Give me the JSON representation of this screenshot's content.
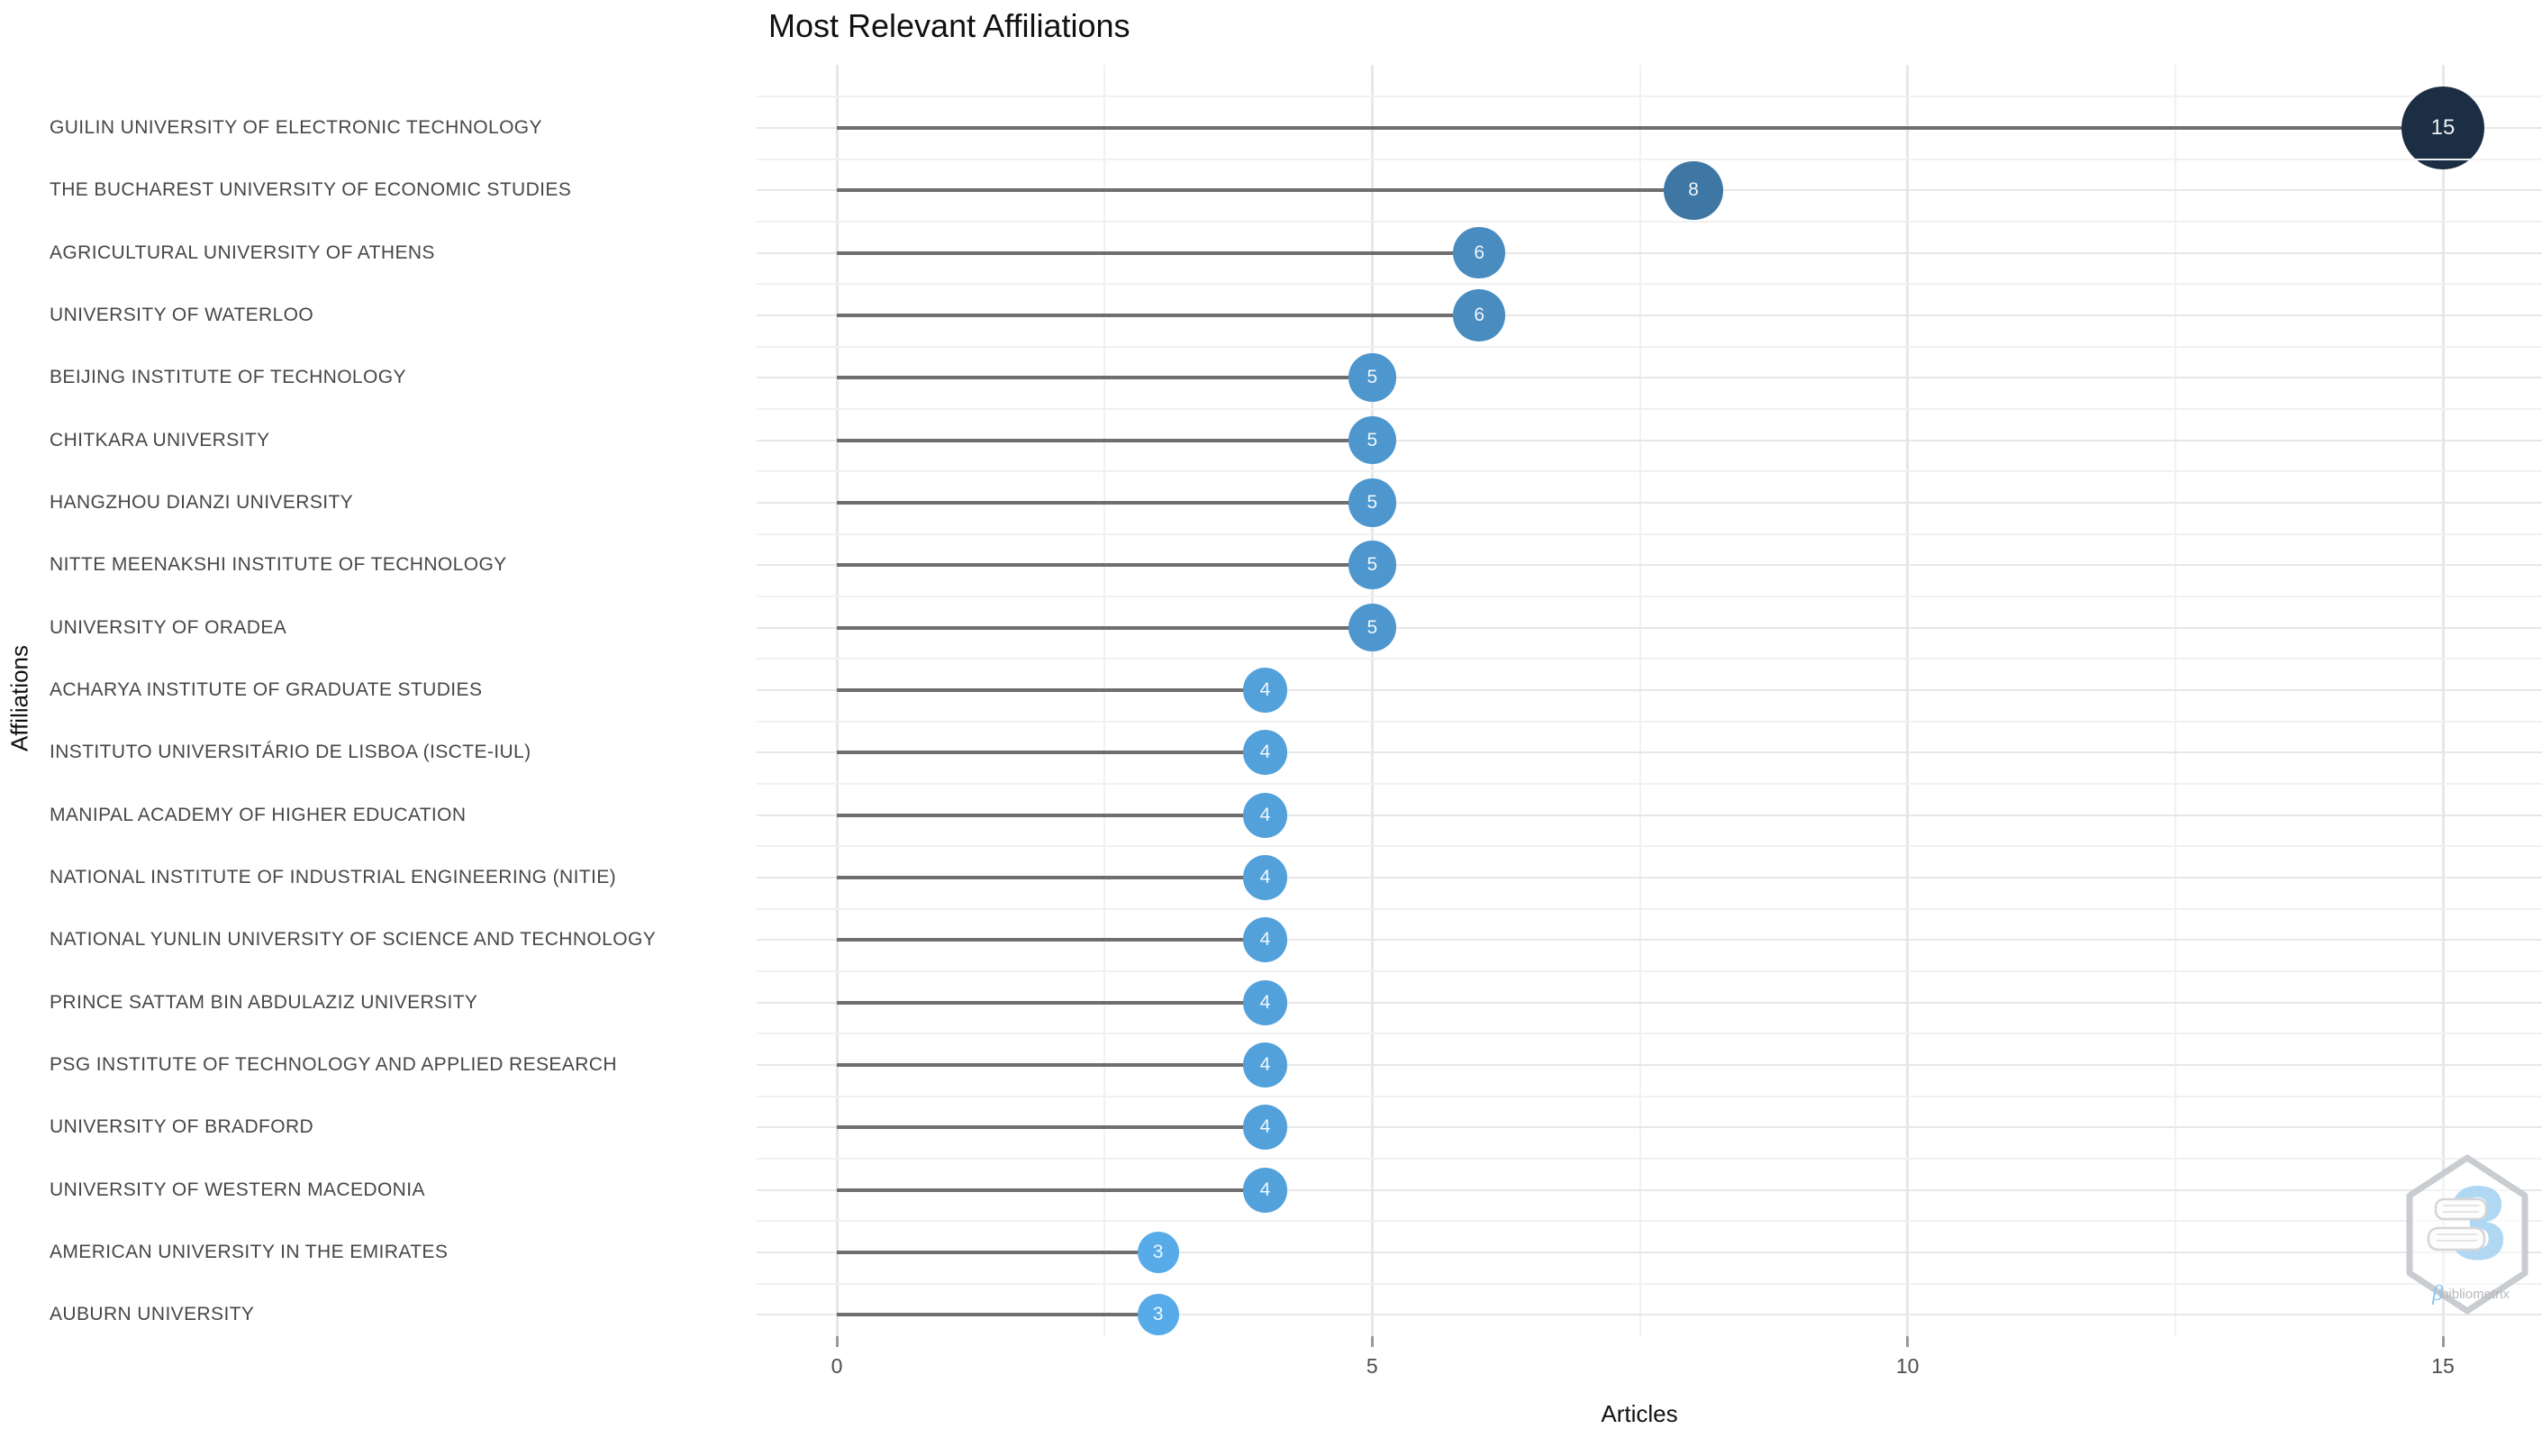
{
  "title": "Most Relevant Affiliations",
  "chart_data": {
    "type": "lollipop",
    "title": "Most Relevant Affiliations",
    "xlabel": "Articles",
    "ylabel": "Affiliations",
    "xlim": [
      0,
      15
    ],
    "x_major_ticks": [
      0,
      5,
      10,
      15
    ],
    "x_minor_gridlines": [
      2.5,
      7.5,
      12.5
    ],
    "grid": "on",
    "legend": "none",
    "series": [
      {
        "affiliation": "GUILIN UNIVERSITY OF ELECTRONIC TECHNOLOGY",
        "articles": 15
      },
      {
        "affiliation": "THE BUCHAREST UNIVERSITY OF ECONOMIC STUDIES",
        "articles": 8
      },
      {
        "affiliation": "AGRICULTURAL UNIVERSITY OF ATHENS",
        "articles": 6
      },
      {
        "affiliation": "UNIVERSITY OF WATERLOO",
        "articles": 6
      },
      {
        "affiliation": "BEIJING INSTITUTE OF TECHNOLOGY",
        "articles": 5
      },
      {
        "affiliation": "CHITKARA UNIVERSITY",
        "articles": 5
      },
      {
        "affiliation": "HANGZHOU DIANZI UNIVERSITY",
        "articles": 5
      },
      {
        "affiliation": "NITTE MEENAKSHI INSTITUTE OF TECHNOLOGY",
        "articles": 5
      },
      {
        "affiliation": "UNIVERSITY OF ORADEA",
        "articles": 5
      },
      {
        "affiliation": "ACHARYA INSTITUTE OF GRADUATE STUDIES",
        "articles": 4
      },
      {
        "affiliation": "INSTITUTO UNIVERSITÁRIO DE LISBOA (ISCTE-IUL)",
        "articles": 4
      },
      {
        "affiliation": "MANIPAL ACADEMY OF HIGHER EDUCATION",
        "articles": 4
      },
      {
        "affiliation": "NATIONAL INSTITUTE OF INDUSTRIAL ENGINEERING (NITIE)",
        "articles": 4
      },
      {
        "affiliation": "NATIONAL YUNLIN UNIVERSITY OF SCIENCE AND TECHNOLOGY",
        "articles": 4
      },
      {
        "affiliation": "PRINCE SATTAM BIN ABDULAZIZ UNIVERSITY",
        "articles": 4
      },
      {
        "affiliation": "PSG INSTITUTE OF TECHNOLOGY AND APPLIED RESEARCH",
        "articles": 4
      },
      {
        "affiliation": "UNIVERSITY OF BRADFORD",
        "articles": 4
      },
      {
        "affiliation": "UNIVERSITY OF WESTERN MACEDONIA",
        "articles": 4
      },
      {
        "affiliation": "AMERICAN UNIVERSITY IN THE EMIRATES",
        "articles": 3
      },
      {
        "affiliation": "AUBURN UNIVERSITY",
        "articles": 3
      }
    ]
  },
  "style": {
    "point_color_low": "#57abe9",
    "point_color_high": "#1b2e44",
    "stem_color": "#6e6e6e",
    "grid_major_color": "#e7e7e7",
    "grid_minor_color": "#f1f1f1",
    "axis_text_color": "#4d4d4d",
    "label_text_color": "#474747"
  },
  "watermark": {
    "glyph": "3",
    "label": "bibliometrix"
  }
}
